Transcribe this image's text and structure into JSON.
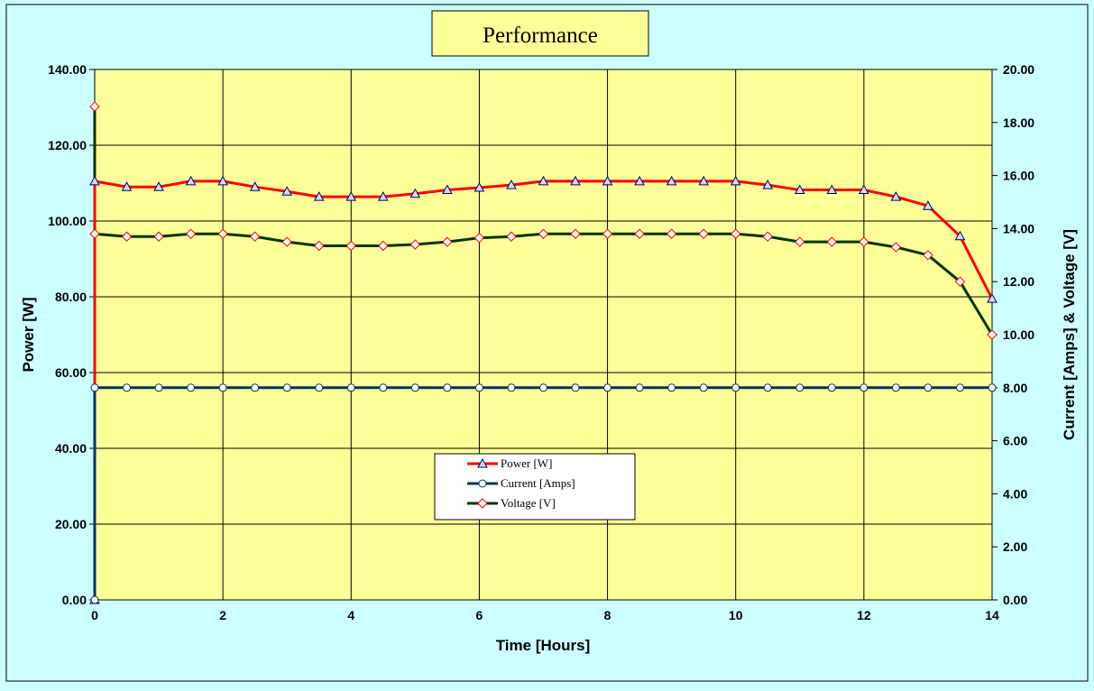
{
  "chart_data": {
    "type": "line",
    "title": "Performance",
    "xlabel": "Time [Hours]",
    "ylabel_left": "Power [W]",
    "ylabel_right": "Current [Amps] & Voltage [V]",
    "xlim": [
      0,
      14
    ],
    "ylim_left": [
      0,
      140
    ],
    "ylim_right": [
      0,
      20
    ],
    "x_ticks": [
      "0",
      "2",
      "4",
      "6",
      "8",
      "10",
      "12",
      "14"
    ],
    "y_ticks_left": [
      "0.00",
      "20.00",
      "40.00",
      "60.00",
      "80.00",
      "100.00",
      "120.00",
      "140.00"
    ],
    "y_ticks_right": [
      "0.00",
      "2.00",
      "4.00",
      "6.00",
      "8.00",
      "10.00",
      "12.00",
      "14.00",
      "16.00",
      "18.00",
      "20.00"
    ],
    "grid": true,
    "legend_position": "lower-center",
    "plot_background": "#ffff99",
    "page_background": "#ccffff",
    "series": [
      {
        "name": "Power [W]",
        "axis": "left",
        "color": "#ff0000",
        "marker": "triangle",
        "x": [
          0,
          0,
          0.5,
          1,
          1.5,
          2,
          2.5,
          3,
          3.5,
          4,
          4.5,
          5,
          5.5,
          6,
          6.5,
          7,
          7.5,
          8,
          8.5,
          9,
          9.5,
          10,
          10.5,
          11,
          11.5,
          12,
          12.5,
          13,
          13.5,
          14
        ],
        "values": [
          0,
          110.5,
          109,
          109,
          110.5,
          110.5,
          109,
          107.8,
          106.4,
          106.4,
          106.4,
          107.2,
          108.2,
          108.8,
          109.5,
          110.5,
          110.5,
          110.5,
          110.5,
          110.5,
          110.5,
          110.5,
          109.5,
          108.2,
          108.2,
          108.2,
          106.4,
          104,
          96,
          79.5
        ]
      },
      {
        "name": "Current [Amps]",
        "axis": "right",
        "color": "#003366",
        "marker": "circle",
        "x": [
          0,
          0,
          0.5,
          1,
          1.5,
          2,
          2.5,
          3,
          3.5,
          4,
          4.5,
          5,
          5.5,
          6,
          6.5,
          7,
          7.5,
          8,
          8.5,
          9,
          9.5,
          10,
          10.5,
          11,
          11.5,
          12,
          12.5,
          13,
          13.5,
          14
        ],
        "values": [
          0,
          8,
          8,
          8,
          8,
          8,
          8,
          8,
          8,
          8,
          8,
          8,
          8,
          8,
          8,
          8,
          8,
          8,
          8,
          8,
          8,
          8,
          8,
          8,
          8,
          8,
          8,
          8,
          8,
          8
        ]
      },
      {
        "name": "Voltage [V]",
        "axis": "right",
        "color": "#003300",
        "marker": "diamond",
        "x": [
          0,
          0,
          0.5,
          1,
          1.5,
          2,
          2.5,
          3,
          3.5,
          4,
          4.5,
          5,
          5.5,
          6,
          6.5,
          7,
          7.5,
          8,
          8.5,
          9,
          9.5,
          10,
          10.5,
          11,
          11.5,
          12,
          12.5,
          13,
          13.5,
          14
        ],
        "values": [
          18.6,
          13.8,
          13.7,
          13.7,
          13.8,
          13.8,
          13.7,
          13.5,
          13.35,
          13.35,
          13.35,
          13.4,
          13.5,
          13.65,
          13.7,
          13.8,
          13.8,
          13.8,
          13.8,
          13.8,
          13.8,
          13.8,
          13.7,
          13.5,
          13.5,
          13.5,
          13.3,
          13,
          12,
          10
        ]
      }
    ]
  }
}
